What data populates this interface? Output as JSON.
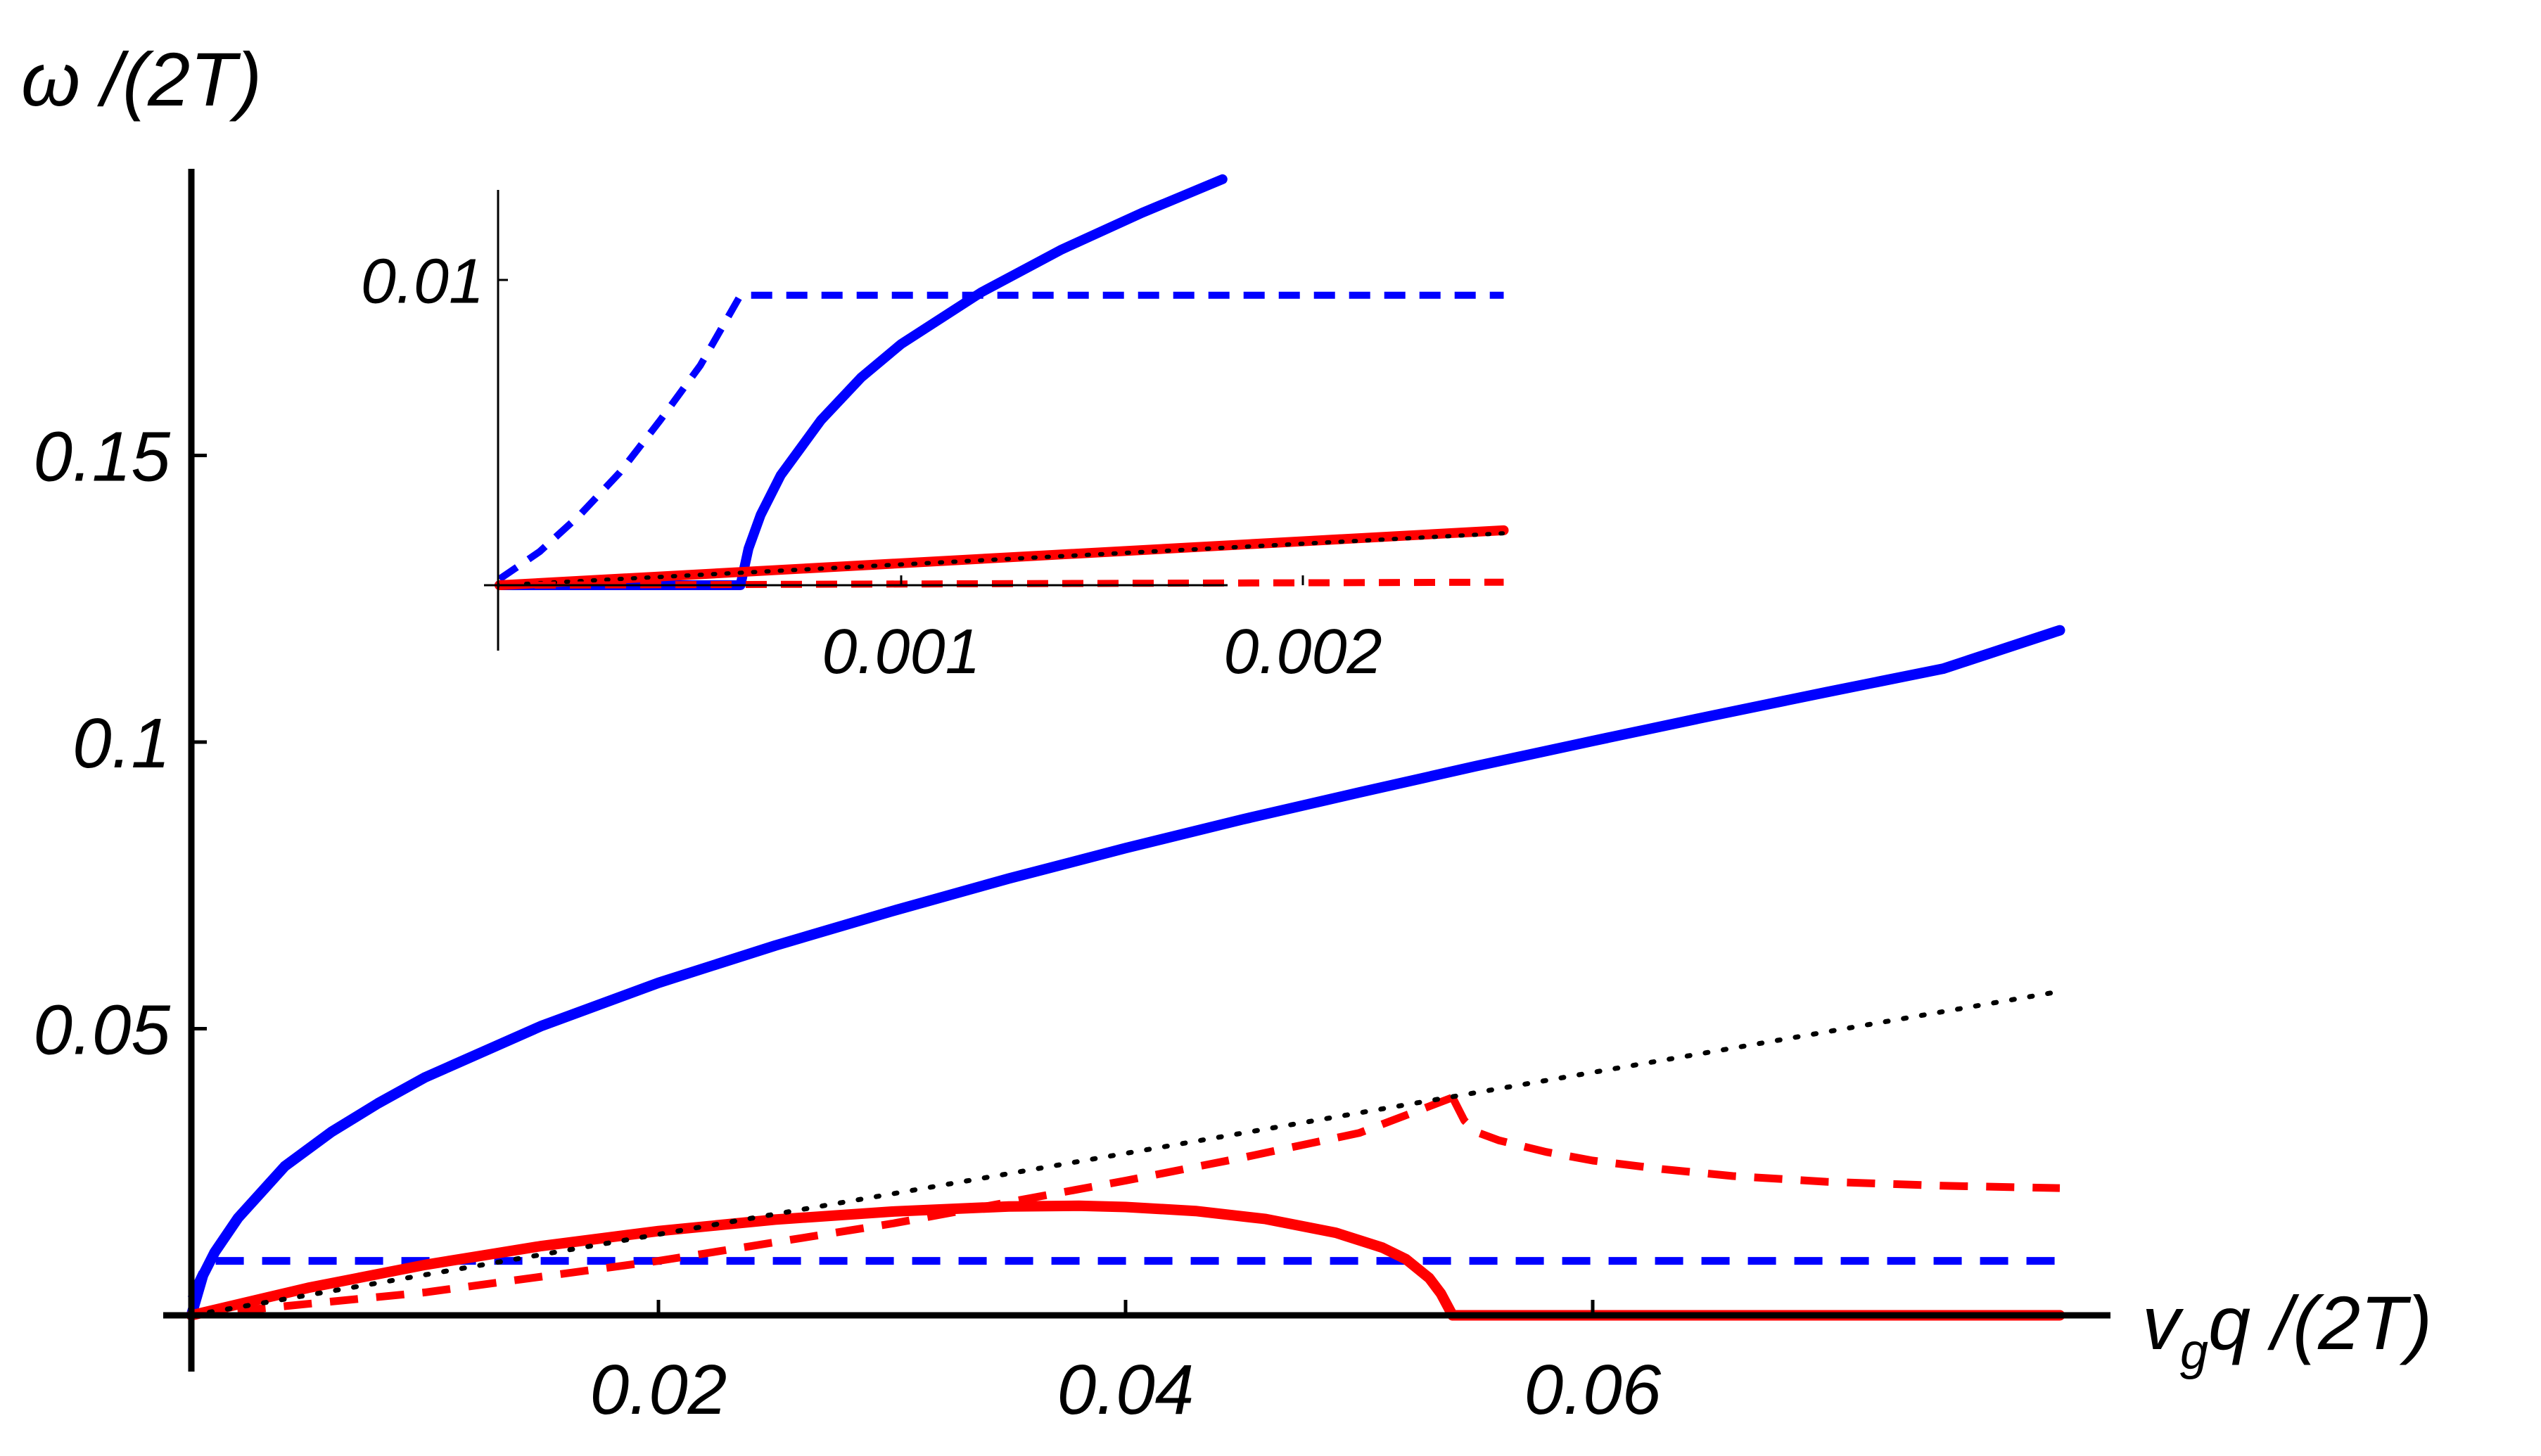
{
  "chart_data": [
    {
      "type": "line",
      "title": "",
      "ylabel": "ω /(2T)",
      "xlabel": "vgq /(2T)",
      "xlabel_parts": {
        "v": "v",
        "sub": "g",
        "rest": "q /(2T)"
      },
      "xlim": [
        0,
        0.08
      ],
      "ylim": [
        0,
        0.2
      ],
      "xticks": [
        0.02,
        0.04,
        0.06
      ],
      "xtick_labels": [
        "0.02",
        "0.04",
        "0.06"
      ],
      "yticks": [
        0.05,
        0.1,
        0.15
      ],
      "ytick_labels": [
        "0.05",
        "0.1",
        "0.15"
      ],
      "grid": false,
      "series": [
        {
          "style": "solid",
          "color": "#0000ff",
          "x": [
            0,
            0.0005,
            0.001,
            0.002,
            0.004,
            0.006,
            0.008,
            0.01,
            0.015,
            0.02,
            0.025,
            0.03,
            0.035,
            0.04,
            0.045,
            0.05,
            0.055,
            0.06,
            0.065,
            0.07,
            0.075,
            0.08
          ],
          "y": [
            0,
            0.007,
            0.011,
            0.017,
            0.026,
            0.032,
            0.037,
            0.0415,
            0.0505,
            0.058,
            0.0645,
            0.0705,
            0.0762,
            0.0815,
            0.0865,
            0.0912,
            0.0958,
            0.1002,
            0.1045,
            0.1087,
            0.1128,
            0.1195
          ]
        },
        {
          "style": "dashed",
          "color": "#0000ff",
          "x": [
            0,
            0.0003,
            0.0006,
            0.001,
            0.08
          ],
          "y": [
            0.003,
            0.006,
            0.0085,
            0.0095,
            0.0095
          ]
        },
        {
          "style": "solid",
          "color": "#ff0000",
          "x": [
            0,
            0.005,
            0.01,
            0.015,
            0.02,
            0.025,
            0.03,
            0.035,
            0.038,
            0.04,
            0.043,
            0.046,
            0.049,
            0.051,
            0.052,
            0.053,
            0.0535,
            0.054
          ],
          "y": [
            0,
            0.0048,
            0.0088,
            0.0121,
            0.0147,
            0.0167,
            0.0181,
            0.019,
            0.0191,
            0.0189,
            0.0182,
            0.0168,
            0.0144,
            0.0118,
            0.0098,
            0.0065,
            0.0038,
            0
          ]
        },
        {
          "style": "solid",
          "color": "#ff0000",
          "x": [
            0.054,
            0.08
          ],
          "y": [
            0,
            0
          ]
        },
        {
          "style": "dashed",
          "color": "#ff0000",
          "x": [
            0,
            0.01,
            0.02,
            0.03,
            0.04,
            0.045,
            0.05,
            0.054
          ],
          "y": [
            0,
            0.004,
            0.0095,
            0.016,
            0.0235,
            0.0275,
            0.0318,
            0.038
          ]
        },
        {
          "style": "dashed",
          "color": "#ff0000",
          "x": [
            0.054,
            0.0545,
            0.055,
            0.056,
            0.058,
            0.06,
            0.063,
            0.066,
            0.07,
            0.075,
            0.08
          ],
          "y": [
            0.038,
            0.034,
            0.032,
            0.0305,
            0.0285,
            0.027,
            0.0255,
            0.0243,
            0.0233,
            0.0226,
            0.0222
          ]
        },
        {
          "style": "dotted",
          "color": "#000000",
          "x": [
            0,
            0.08
          ],
          "y": [
            0,
            0.0565
          ]
        }
      ]
    },
    {
      "type": "line",
      "title": "",
      "xlim": [
        0,
        0.0025
      ],
      "ylim": [
        -0.002,
        0.0135
      ],
      "xticks": [
        0.001,
        0.002
      ],
      "xtick_labels": [
        "0.001",
        "0.002"
      ],
      "yticks": [
        0.01
      ],
      "ytick_labels": [
        "0.01"
      ],
      "grid": false,
      "series": [
        {
          "style": "solid",
          "color": "#0000ff",
          "x": [
            0,
            0.0006,
            0.0006,
            0.00062,
            0.00065,
            0.0007,
            0.0008,
            0.0009,
            0.001,
            0.0012,
            0.0014,
            0.0016,
            0.0018
          ],
          "y": [
            0,
            0,
            0,
            0.0012,
            0.0023,
            0.0036,
            0.0054,
            0.0068,
            0.0079,
            0.0096,
            0.011,
            0.0122,
            0.0133
          ]
        },
        {
          "style": "dashed",
          "color": "#0000ff",
          "x": [
            0,
            0.0001,
            0.0002,
            0.0003,
            0.0004,
            0.0005,
            0.0006,
            0.0025
          ],
          "y": [
            0.0002,
            0.0011,
            0.0023,
            0.0037,
            0.0054,
            0.0072,
            0.0095,
            0.0095
          ]
        },
        {
          "style": "solid",
          "color": "#ff0000",
          "x": [
            0,
            0.0025
          ],
          "y": [
            0,
            0.0018
          ]
        },
        {
          "style": "dotted",
          "color": "#000000",
          "x": [
            0,
            0.0025
          ],
          "y": [
            0,
            0.0017
          ]
        },
        {
          "style": "dashed",
          "color": "#ff0000",
          "x": [
            0,
            0.0025
          ],
          "y": [
            0,
            0.0001
          ]
        }
      ]
    }
  ]
}
